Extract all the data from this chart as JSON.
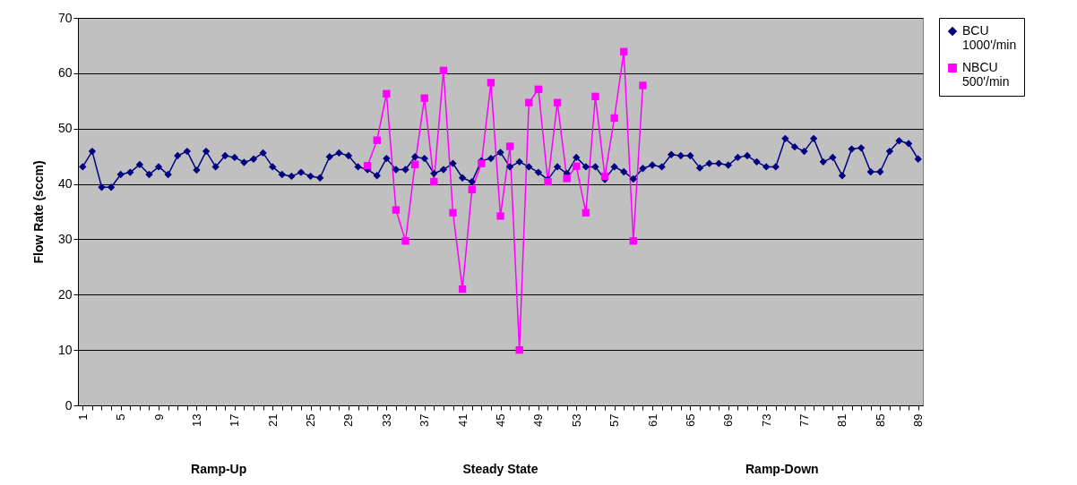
{
  "chart_data": {
    "type": "line",
    "ylabel": "Flow Rate (sccm)",
    "categories": [
      "1",
      null,
      null,
      null,
      "5",
      null,
      null,
      null,
      "9",
      null,
      null,
      null,
      "13",
      null,
      null,
      null,
      "17",
      null,
      null,
      null,
      "21",
      null,
      null,
      null,
      "25",
      null,
      null,
      null,
      "29",
      null,
      null,
      null,
      "33",
      null,
      null,
      null,
      "37",
      null,
      null,
      null,
      "41",
      null,
      null,
      null,
      "45",
      null,
      null,
      null,
      "49",
      null,
      null,
      null,
      "53",
      null,
      null,
      null,
      "57",
      null,
      null,
      null,
      "61",
      null,
      null,
      null,
      "65",
      null,
      null,
      null,
      "69",
      null,
      null,
      null,
      "73",
      null,
      null,
      null,
      "77",
      null,
      null,
      null,
      "81",
      null,
      null,
      null,
      "85",
      null,
      null,
      null,
      "89"
    ],
    "series": [
      {
        "name": "BCU 1000'/min",
        "color": "#000080",
        "marker": "diamond",
        "values": [
          43.1,
          45.9,
          39.4,
          39.4,
          41.7,
          42.1,
          43.5,
          41.7,
          43.1,
          41.7,
          45.1,
          45.9,
          42.5,
          45.9,
          43.1,
          45.1,
          44.8,
          43.9,
          44.5,
          45.6,
          43.1,
          41.7,
          41.4,
          42.1,
          41.4,
          41.1,
          44.9,
          45.6,
          45.1,
          43.1,
          42.6,
          41.5,
          44.6,
          42.6,
          42.6,
          44.9,
          44.6,
          41.9,
          42.6,
          43.7,
          41.1,
          40.4,
          44.2,
          44.6,
          45.7,
          43.1,
          44.0,
          43.1,
          42.1,
          40.8,
          43.1,
          41.9,
          44.8,
          43.1,
          43.1,
          40.8,
          43.1,
          42.2,
          40.9,
          42.8,
          43.4,
          43.1,
          45.3,
          45.1,
          45.1,
          42.9,
          43.7,
          43.7,
          43.4,
          44.8,
          45.1,
          44.0,
          43.1,
          43.1,
          48.2,
          46.7,
          45.9,
          48.2,
          44.0,
          44.8,
          41.5,
          46.3,
          46.5,
          42.2,
          42.2,
          45.9,
          47.8,
          47.3,
          44.5
        ]
      },
      {
        "name": "NBCU 500'/min",
        "color": "#ff00ff",
        "marker": "square",
        "values": [
          null,
          null,
          null,
          null,
          null,
          null,
          null,
          null,
          null,
          null,
          null,
          null,
          null,
          null,
          null,
          null,
          null,
          null,
          null,
          null,
          null,
          null,
          null,
          null,
          null,
          null,
          null,
          null,
          null,
          null,
          43.3,
          47.9,
          56.3,
          35.3,
          29.7,
          43.5,
          55.5,
          40.4,
          60.5,
          34.8,
          21.0,
          39.0,
          43.7,
          58.3,
          34.2,
          46.8,
          10.0,
          54.7,
          57.1,
          40.4,
          54.7,
          41.0,
          43.2,
          34.8,
          55.8,
          41.4,
          51.9,
          63.9,
          29.7,
          57.8,
          null,
          null,
          null,
          null,
          null,
          null,
          null,
          null,
          null,
          null,
          null,
          null,
          null,
          null,
          null,
          null,
          null,
          null,
          null,
          null,
          null,
          null,
          null,
          null,
          null,
          null,
          null,
          null,
          null
        ]
      }
    ],
    "ylim": [
      0,
      70
    ],
    "yticks": [
      0,
      10,
      20,
      30,
      40,
      50,
      60,
      70
    ],
    "grid": "y",
    "legend": "right",
    "line_style": "solid",
    "annotations": [
      "Ramp-Up",
      "Steady State",
      "Ramp-Down"
    ]
  }
}
